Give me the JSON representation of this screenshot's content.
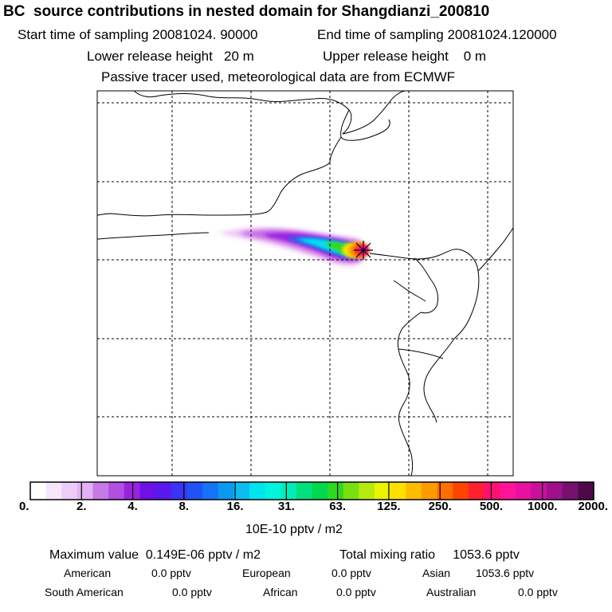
{
  "header": {
    "title": "BC  source contributions in nested domain for Shangdianzi_200810",
    "start_time": "Start time of sampling 20081024. 90000",
    "end_time": "End time of sampling 20081024.120000",
    "lower_release": "Lower release height   20 m",
    "upper_release": "Upper release height    0 m",
    "tracer_note": "Passive tracer used, meteorological data are from ECMWF"
  },
  "colorbar": {
    "ticks": [
      "0.",
      "2.",
      "4.",
      "8.",
      "16.",
      "31.",
      "63.",
      "125.",
      "250.",
      "500.",
      "1000.",
      "2000."
    ],
    "unit_label": "10E-10 pptv / m2",
    "colors": [
      "#ffffff",
      "#f7e6fb",
      "#efccf7",
      "#e2b1f3",
      "#c77ae6",
      "#b04fe1",
      "#9a22dd",
      "#6e10e6",
      "#5a18f0",
      "#3b34f4",
      "#2252f6",
      "#1474f5",
      "#0a99f2",
      "#0bbcf0",
      "#00e4ee",
      "#00f4de",
      "#00ecb8",
      "#00e080",
      "#00d850",
      "#30d820",
      "#78e010",
      "#b8ea10",
      "#eaf400",
      "#ffe000",
      "#ffbc00",
      "#ff9a00",
      "#ff6e00",
      "#ff4400",
      "#ff2030",
      "#ff1070",
      "#ff1498",
      "#e810a0",
      "#c8109c",
      "#a0108c",
      "#781070",
      "#4c0a4a"
    ]
  },
  "footer": {
    "max_value": "Maximum value  0.149E-06 pptv / m2",
    "total_mixing": "Total mixing ratio     1053.6 pptv",
    "american_label": "American",
    "american_value": "0.0 pptv",
    "european_label": "European",
    "european_value": "0.0 pptv",
    "asian_label": "Asian",
    "asian_value": "1053.6 pptv",
    "south_american_label": "South American",
    "south_american_value": "0.0 pptv",
    "african_label": "African",
    "african_value": "0.0 pptv",
    "australian_label": "Australian",
    "australian_value": "0.0 pptv"
  },
  "map": {
    "station_marker": "station-star-icon"
  }
}
